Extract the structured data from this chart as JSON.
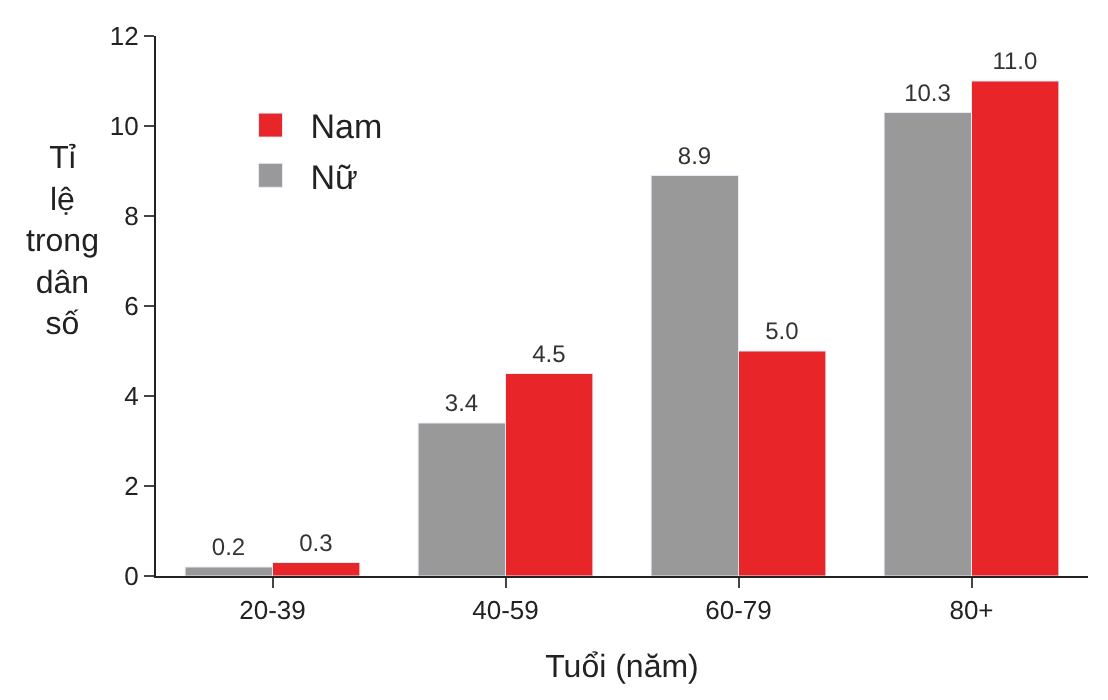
{
  "chart_data": {
    "type": "bar",
    "xlabel": "Tuổi (năm)",
    "ylabel": "Tỉ lệ trong dân số",
    "categories": [
      "20-39",
      "40-59",
      "60-79",
      "80+"
    ],
    "series": [
      {
        "name": "Nữ",
        "color": "#999999",
        "values": [
          0.2,
          3.4,
          8.9,
          10.3
        ],
        "value_labels": [
          "0.2",
          "3.4",
          "8.9",
          "10.3"
        ]
      },
      {
        "name": "Nam",
        "color": "#e8262a",
        "values": [
          0.3,
          4.5,
          5.0,
          11.0
        ],
        "value_labels": [
          "0.3",
          "4.5",
          "5.0",
          "11.0"
        ]
      }
    ],
    "ylim": [
      0,
      12
    ],
    "yticks": [
      0,
      2,
      4,
      6,
      8,
      10,
      12
    ],
    "legend": "top left"
  }
}
